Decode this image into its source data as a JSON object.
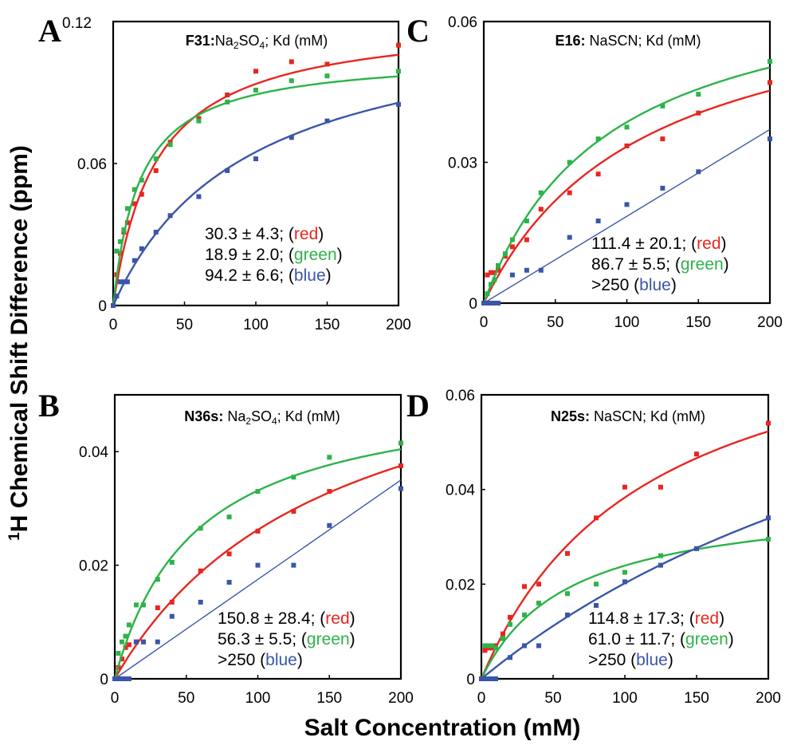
{
  "figure": {
    "ylabel_sup": "1",
    "ylabel": "H Chemical Shift Difference (ppm)",
    "xlabel": "Salt Concentration (mM)"
  },
  "colors": {
    "red": "#e8261f",
    "green": "#2db34a",
    "blue": "#3a56a8"
  },
  "chart_data": [
    {
      "type": "scatter",
      "panel": "A",
      "title_bold": "F31:",
      "title_rest": " Na2SO4; Kd (mM)",
      "title_parts": [
        {
          "t": "Na",
          "s": "n"
        },
        {
          "t": "2",
          "s": "sub"
        },
        {
          "t": "SO",
          "s": "n"
        },
        {
          "t": "4",
          "s": "sub"
        },
        {
          "t": "; Kd (mM)",
          "s": "n"
        }
      ],
      "xlim": [
        0,
        200
      ],
      "ylim": [
        0,
        0.12
      ],
      "xticks": [
        "0",
        "50",
        "100",
        "150",
        "200"
      ],
      "yticks": [
        {
          "v": 0,
          "label": "0"
        },
        {
          "v": 0.06,
          "label": "0.06"
        },
        {
          "v": 0.12,
          "label": "0.12"
        }
      ],
      "grid": false,
      "annotations": [
        {
          "text": "30.3 ± 4.3; (",
          "color_word": "red",
          "tail": ")",
          "color": "red"
        },
        {
          "text": "18.9 ± 2.0; (",
          "color_word": "green",
          "tail": ")",
          "color": "green"
        },
        {
          "text": "94.2 ± 6.6; (",
          "color_word": "blue",
          "tail": ")",
          "color": "blue"
        }
      ],
      "series": [
        {
          "color": "red",
          "x": [
            0,
            2.5,
            5,
            7.5,
            10,
            15,
            20,
            30,
            40,
            60,
            80,
            100,
            125,
            150,
            200
          ],
          "y": [
            0.0,
            0.013,
            0.022,
            0.031,
            0.035,
            0.043,
            0.047,
            0.057,
            0.069,
            0.079,
            0.089,
            0.099,
            0.103,
            0.102,
            0.11
          ],
          "fit": {
            "kd": 30.3,
            "max": 0.122
          }
        },
        {
          "color": "green",
          "x": [
            0,
            2.5,
            5,
            7.5,
            10,
            15,
            20,
            30,
            40,
            60,
            80,
            100,
            125,
            150,
            200
          ],
          "y": [
            0.0,
            0.023,
            0.027,
            0.032,
            0.041,
            0.049,
            0.053,
            0.062,
            0.068,
            0.078,
            0.086,
            0.091,
            0.095,
            0.097,
            0.099
          ],
          "fit": {
            "kd": 18.9,
            "max": 0.106
          }
        },
        {
          "color": "blue",
          "x": [
            0,
            2.5,
            5,
            7.5,
            10,
            15,
            20,
            30,
            40,
            60,
            80,
            100,
            125,
            150,
            200
          ],
          "y": [
            0.0,
            0.004,
            0.01,
            0.01,
            0.01,
            0.019,
            0.024,
            0.031,
            0.038,
            0.046,
            0.057,
            0.062,
            0.071,
            0.078,
            0.085
          ],
          "fit": {
            "kd": 94.2,
            "max": 0.126
          }
        }
      ]
    },
    {
      "type": "scatter",
      "panel": "C",
      "title_bold": "E16:",
      "title_parts": [
        {
          "t": " NaSCN; Kd (mM)",
          "s": "n"
        }
      ],
      "xlim": [
        0,
        200
      ],
      "ylim": [
        0,
        0.06
      ],
      "xticks": [
        "0",
        "50",
        "100",
        "150",
        "200"
      ],
      "yticks": [
        {
          "v": 0,
          "label": "0"
        },
        {
          "v": 0.03,
          "label": "0.03"
        },
        {
          "v": 0.06,
          "label": "0.06"
        }
      ],
      "grid": false,
      "annotations": [
        {
          "text": "111.4 ± 20.1; (",
          "color_word": "red",
          "tail": ")",
          "color": "red"
        },
        {
          "text": "86.7 ± 5.5; (",
          "color_word": "green",
          "tail": ")",
          "color": "green"
        },
        {
          "text": ">250 (",
          "color_word": "blue",
          "tail": ")",
          "color": "blue"
        }
      ],
      "series": [
        {
          "color": "red",
          "x": [
            0,
            2.5,
            5,
            7.5,
            10,
            15,
            20,
            30,
            40,
            60,
            80,
            100,
            125,
            150,
            200
          ],
          "y": [
            0.0,
            0.006,
            0.0065,
            0.0065,
            0.007,
            0.01,
            0.012,
            0.0135,
            0.02,
            0.0235,
            0.0275,
            0.0335,
            0.035,
            0.0405,
            0.047
          ],
          "fit": {
            "kd": 111.4,
            "max": 0.0705
          }
        },
        {
          "color": "green",
          "x": [
            0,
            2.5,
            5,
            7.5,
            10,
            15,
            20,
            30,
            40,
            60,
            80,
            100,
            125,
            150,
            200
          ],
          "y": [
            0.0,
            0.002,
            0.004,
            0.005,
            0.008,
            0.0105,
            0.0135,
            0.0175,
            0.0235,
            0.03,
            0.035,
            0.0375,
            0.042,
            0.0445,
            0.0515
          ],
          "fit": {
            "kd": 86.7,
            "max": 0.072
          }
        },
        {
          "color": "blue",
          "x": [
            0,
            2.5,
            5,
            7.5,
            10,
            20,
            30,
            40,
            60,
            80,
            100,
            125,
            150,
            200
          ],
          "y": [
            0.0,
            0.0,
            0.0,
            0.0,
            0.0,
            0.006,
            0.007,
            0.007,
            0.014,
            0.0175,
            0.021,
            0.0245,
            0.028,
            0.035
          ],
          "fit": {
            "linear": true,
            "end": 0.037
          }
        }
      ]
    },
    {
      "type": "scatter",
      "panel": "B",
      "title_bold": "N36s:",
      "title_parts": [
        {
          "t": " Na",
          "s": "n"
        },
        {
          "t": "2",
          "s": "sub"
        },
        {
          "t": "SO",
          "s": "n"
        },
        {
          "t": "4",
          "s": "sub"
        },
        {
          "t": "; Kd (mM)",
          "s": "n"
        }
      ],
      "xlim": [
        0,
        200
      ],
      "ylim": [
        0,
        0.05
      ],
      "xticks": [
        "0",
        "50",
        "100",
        "150",
        "200"
      ],
      "yticks": [
        {
          "v": 0,
          "label": "0"
        },
        {
          "v": 0.02,
          "label": "0.02"
        },
        {
          "v": 0.04,
          "label": "0.04"
        }
      ],
      "grid": false,
      "annotations": [
        {
          "text": "150.8 ± 28.4; (",
          "color_word": "red",
          "tail": ")",
          "color": "red"
        },
        {
          "text": "56.3 ± 5.5; (",
          "color_word": "green",
          "tail": ")",
          "color": "green"
        },
        {
          "text": ">250 (",
          "color_word": "blue",
          "tail": ")",
          "color": "blue"
        }
      ],
      "series": [
        {
          "color": "red",
          "x": [
            0,
            2.5,
            5,
            7.5,
            10,
            15,
            20,
            30,
            40,
            60,
            80,
            100,
            125,
            150,
            200
          ],
          "y": [
            0.0,
            0.002,
            0.0035,
            0.0055,
            0.006,
            0.0065,
            0.0065,
            0.0125,
            0.0135,
            0.019,
            0.022,
            0.026,
            0.0295,
            0.033,
            0.0375
          ],
          "fit": {
            "kd": 150.8,
            "max": 0.0658
          }
        },
        {
          "color": "green",
          "x": [
            0,
            2.5,
            5,
            7.5,
            10,
            15,
            20,
            30,
            40,
            60,
            80,
            100,
            125,
            150,
            200
          ],
          "y": [
            0.0,
            0.0045,
            0.0065,
            0.0075,
            0.0095,
            0.013,
            0.013,
            0.0175,
            0.0205,
            0.0265,
            0.0285,
            0.033,
            0.0355,
            0.039,
            0.0415
          ],
          "fit": {
            "kd": 56.3,
            "max": 0.0518
          }
        },
        {
          "color": "blue",
          "x": [
            0,
            2.5,
            5,
            7.5,
            10,
            15,
            20,
            30,
            40,
            60,
            80,
            100,
            125,
            150,
            200
          ],
          "y": [
            0.0,
            0.0,
            0.0,
            0.0,
            0.0,
            0.0065,
            0.0065,
            0.0065,
            0.011,
            0.0135,
            0.017,
            0.02,
            0.02,
            0.027,
            0.0335
          ],
          "fit": {
            "linear": true,
            "end": 0.035
          }
        }
      ]
    },
    {
      "type": "scatter",
      "panel": "D",
      "title_bold": "N25s:",
      "title_parts": [
        {
          "t": " NaSCN; Kd (mM)",
          "s": "n"
        }
      ],
      "xlim": [
        0,
        200
      ],
      "ylim": [
        0,
        0.06
      ],
      "xticks": [
        "0",
        "50",
        "100",
        "150",
        "200"
      ],
      "yticks": [
        {
          "v": 0,
          "label": "0"
        },
        {
          "v": 0.02,
          "label": "0.02"
        },
        {
          "v": 0.04,
          "label": "0.04"
        },
        {
          "v": 0.06,
          "label": "0.06"
        }
      ],
      "grid": false,
      "annotations": [
        {
          "text": "114.8 ± 17.3; (",
          "color_word": "red",
          "tail": ")",
          "color": "red"
        },
        {
          "text": "61.0 ± 11.7; (",
          "color_word": "green",
          "tail": ")",
          "color": "green"
        },
        {
          "text": ">250 (",
          "color_word": "blue",
          "tail": ")",
          "color": "blue"
        }
      ],
      "series": [
        {
          "color": "red",
          "x": [
            0,
            2.5,
            5,
            7.5,
            10,
            15,
            20,
            30,
            40,
            60,
            80,
            100,
            125,
            150,
            200
          ],
          "y": [
            0.0,
            0.006,
            0.0065,
            0.0065,
            0.007,
            0.0095,
            0.013,
            0.0195,
            0.02,
            0.0265,
            0.034,
            0.0405,
            0.0405,
            0.0475,
            0.054
          ],
          "fit": {
            "kd": 114.8,
            "max": 0.0823
          }
        },
        {
          "color": "green",
          "x": [
            0,
            2.5,
            5,
            7.5,
            10,
            15,
            20,
            30,
            40,
            60,
            80,
            100,
            125,
            150,
            200
          ],
          "y": [
            0.0,
            0.007,
            0.007,
            0.007,
            0.0065,
            0.0085,
            0.0115,
            0.0135,
            0.016,
            0.018,
            0.02,
            0.0225,
            0.026,
            0.0275,
            0.0295
          ],
          "fit": {
            "kd": 61.0,
            "max": 0.0385
          }
        },
        {
          "color": "blue",
          "x": [
            0,
            2.5,
            5,
            7.5,
            10,
            20,
            30,
            40,
            60,
            80,
            100,
            125,
            150,
            200
          ],
          "y": [
            0.0,
            0.0,
            0.0,
            0.0,
            0.0,
            0.0045,
            0.007,
            0.007,
            0.0135,
            0.0155,
            0.0205,
            0.024,
            0.0275,
            0.034
          ],
          "fit": {
            "kd": 420,
            "max": 0.105
          }
        }
      ]
    }
  ]
}
